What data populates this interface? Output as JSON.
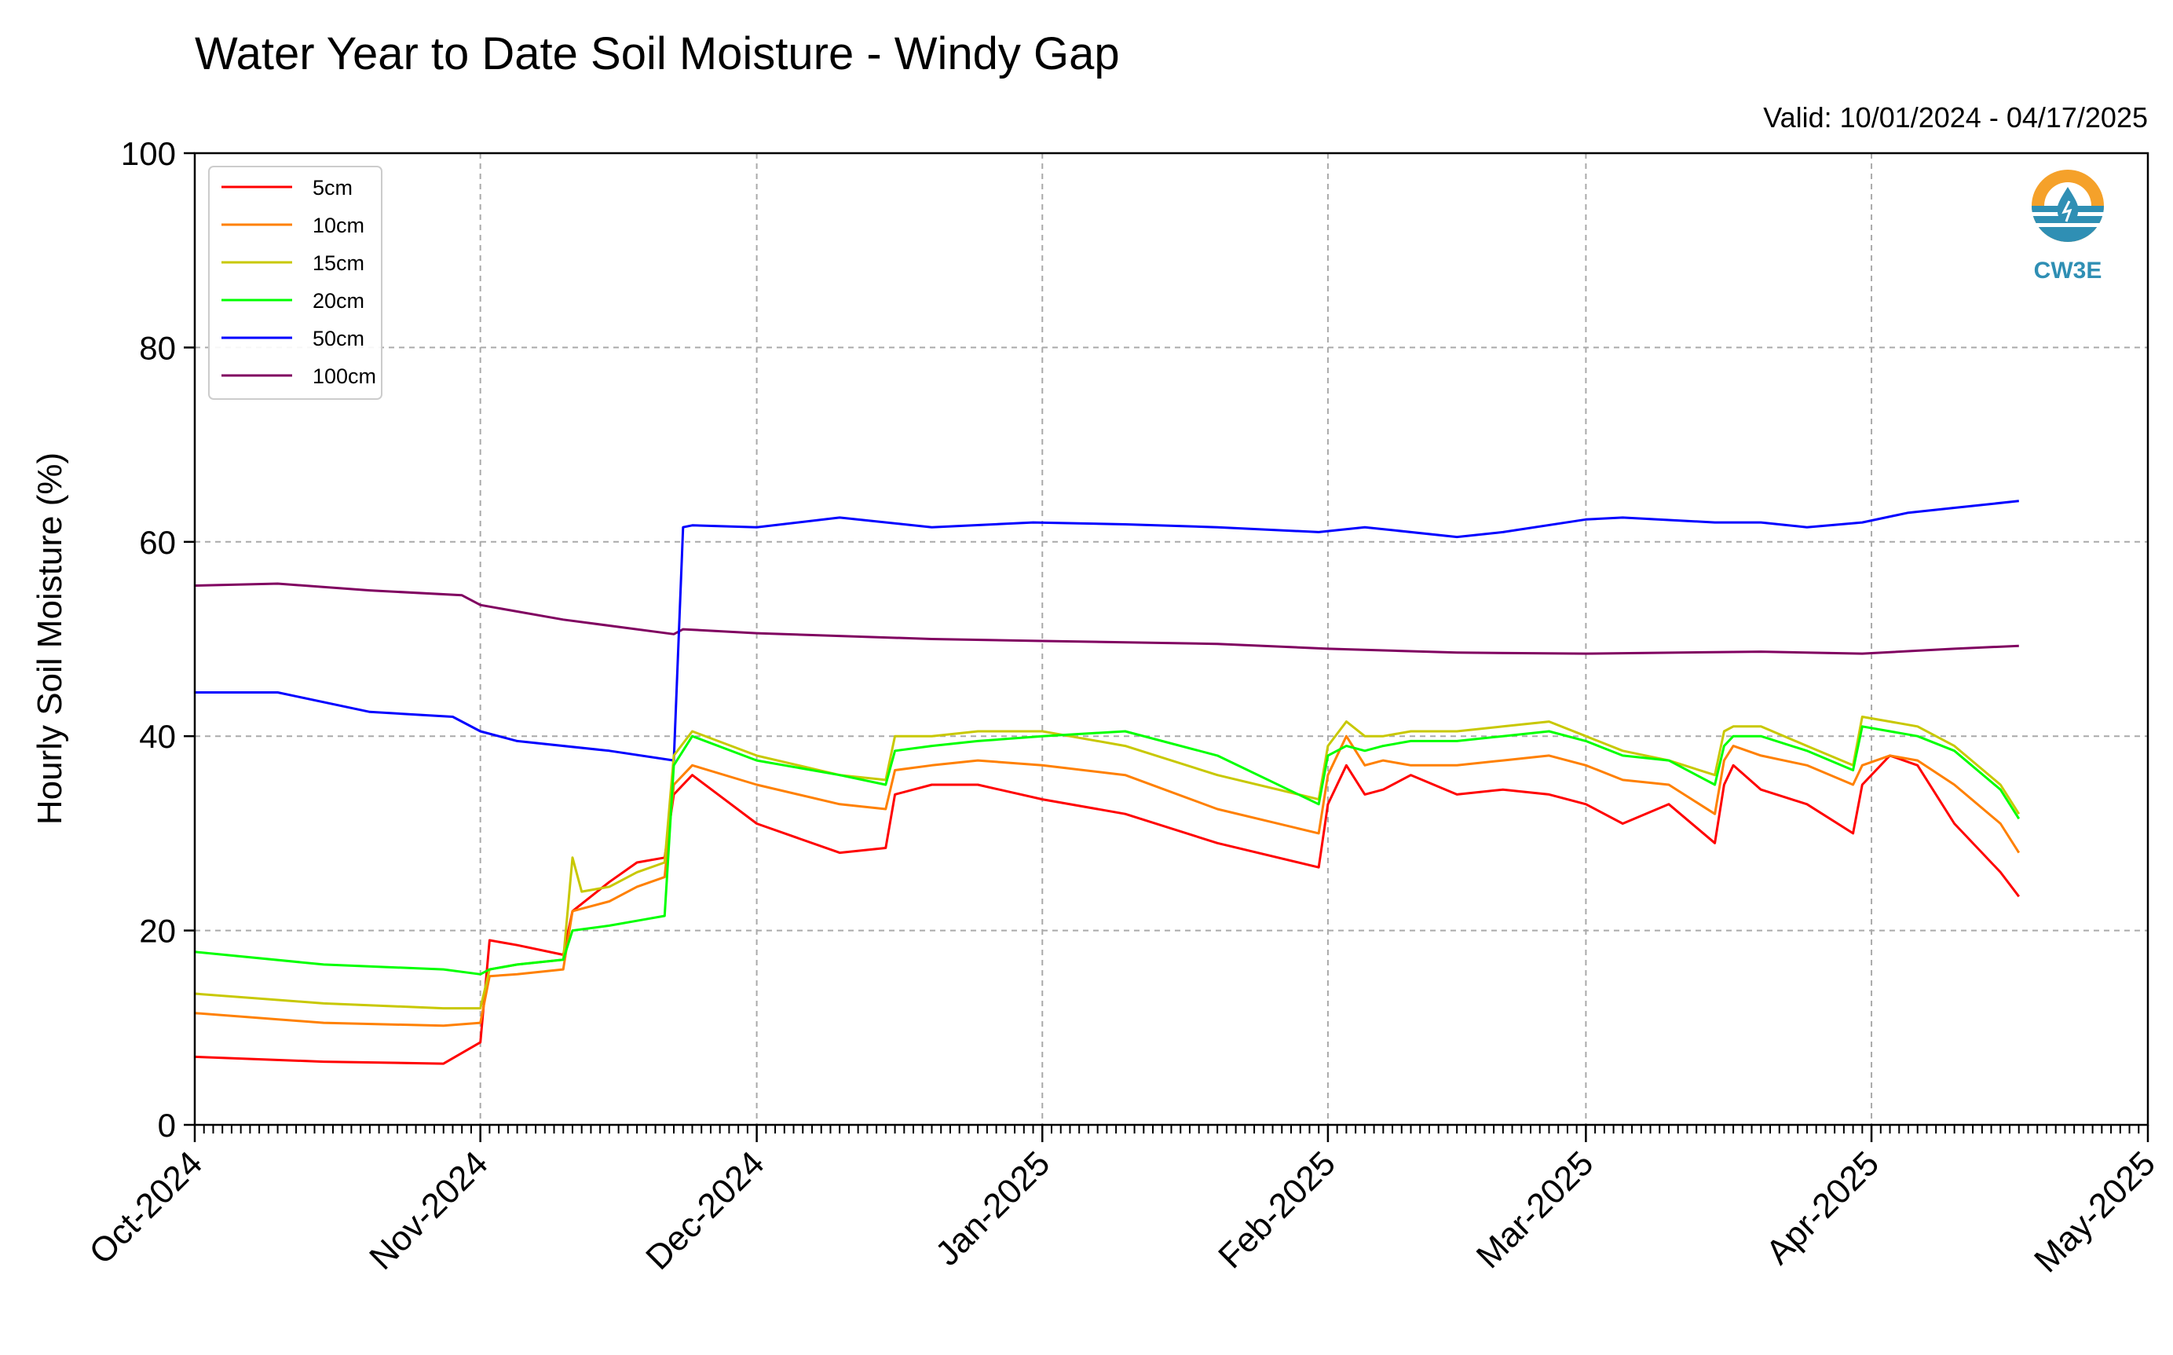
{
  "chart_data": {
    "type": "line",
    "title": "Water Year to Date Soil Moisture - Windy Gap",
    "subtitle": "Valid: 10/01/2024 - 04/17/2025",
    "xlabel": "",
    "ylabel": "Hourly Soil Moisture (%)",
    "ylim": [
      0,
      100
    ],
    "yticks": [
      "0",
      "20",
      "40",
      "60",
      "80",
      "100"
    ],
    "xticks": [
      "Oct-2024",
      "Nov-2024",
      "Dec-2024",
      "Jan-2025",
      "Feb-2025",
      "Mar-2025",
      "Apr-2025",
      "May-2025"
    ],
    "xlim": [
      "2024-10-01",
      "2025-05-01"
    ],
    "grid": true,
    "legend_position": "top-left",
    "series": [
      {
        "name": "5cm",
        "color": "#ff0000",
        "x": [
          "2024-10-01",
          "2024-10-15",
          "2024-10-28",
          "2024-11-01",
          "2024-11-02",
          "2024-11-05",
          "2024-11-10",
          "2024-11-11",
          "2024-11-15",
          "2024-11-18",
          "2024-11-21",
          "2024-11-22",
          "2024-11-24",
          "2024-12-01",
          "2024-12-10",
          "2024-12-15",
          "2024-12-16",
          "2024-12-20",
          "2024-12-25",
          "2025-01-01",
          "2025-01-10",
          "2025-01-20",
          "2025-01-31",
          "2025-02-01",
          "2025-02-03",
          "2025-02-05",
          "2025-02-07",
          "2025-02-10",
          "2025-02-15",
          "2025-02-20",
          "2025-02-25",
          "2025-03-01",
          "2025-03-05",
          "2025-03-10",
          "2025-03-15",
          "2025-03-16",
          "2025-03-17",
          "2025-03-20",
          "2025-03-25",
          "2025-03-30",
          "2025-03-31",
          "2025-04-03",
          "2025-04-06",
          "2025-04-10",
          "2025-04-15",
          "2025-04-17"
        ],
        "values": [
          7,
          6.5,
          6.3,
          8.5,
          19,
          18.5,
          17.5,
          22,
          25,
          27,
          27.5,
          34,
          36,
          31,
          28,
          28.5,
          34,
          35,
          35,
          33.5,
          32,
          29,
          26.5,
          33,
          37,
          34,
          34.5,
          36,
          34,
          34.5,
          34,
          33,
          31,
          33,
          29,
          35,
          37,
          34.5,
          33,
          30,
          35,
          38,
          37,
          31,
          26,
          23.5
        ]
      },
      {
        "name": "10cm",
        "color": "#ff8000",
        "x": [
          "2024-10-01",
          "2024-10-15",
          "2024-10-28",
          "2024-11-01",
          "2024-11-02",
          "2024-11-05",
          "2024-11-10",
          "2024-11-11",
          "2024-11-15",
          "2024-11-18",
          "2024-11-21",
          "2024-11-22",
          "2024-11-24",
          "2024-12-01",
          "2024-12-10",
          "2024-12-15",
          "2024-12-16",
          "2024-12-20",
          "2024-12-25",
          "2025-01-01",
          "2025-01-10",
          "2025-01-20",
          "2025-01-31",
          "2025-02-01",
          "2025-02-03",
          "2025-02-05",
          "2025-02-07",
          "2025-02-10",
          "2025-02-15",
          "2025-02-20",
          "2025-02-25",
          "2025-03-01",
          "2025-03-05",
          "2025-03-10",
          "2025-03-15",
          "2025-03-16",
          "2025-03-17",
          "2025-03-20",
          "2025-03-25",
          "2025-03-30",
          "2025-03-31",
          "2025-04-03",
          "2025-04-06",
          "2025-04-10",
          "2025-04-15",
          "2025-04-17"
        ],
        "values": [
          11.5,
          10.5,
          10.2,
          10.5,
          15.3,
          15.5,
          16,
          22,
          23,
          24.5,
          25.5,
          35,
          37,
          35,
          33,
          32.5,
          36.5,
          37,
          37.5,
          37,
          36,
          32.5,
          30,
          36,
          40,
          37,
          37.5,
          37,
          37,
          37.5,
          38,
          37,
          35.5,
          35,
          32,
          37.5,
          39,
          38,
          37,
          35,
          37,
          38,
          37.5,
          35,
          31,
          28
        ]
      },
      {
        "name": "15cm",
        "color": "#c8c800",
        "x": [
          "2024-10-01",
          "2024-10-15",
          "2024-10-28",
          "2024-11-01",
          "2024-11-02",
          "2024-11-05",
          "2024-11-10",
          "2024-11-11",
          "2024-11-12",
          "2024-11-15",
          "2024-11-18",
          "2024-11-21",
          "2024-11-22",
          "2024-11-24",
          "2024-12-01",
          "2024-12-10",
          "2024-12-15",
          "2024-12-16",
          "2024-12-20",
          "2024-12-25",
          "2025-01-01",
          "2025-01-10",
          "2025-01-20",
          "2025-01-31",
          "2025-02-01",
          "2025-02-03",
          "2025-02-05",
          "2025-02-07",
          "2025-02-10",
          "2025-02-15",
          "2025-02-20",
          "2025-02-25",
          "2025-03-01",
          "2025-03-05",
          "2025-03-10",
          "2025-03-15",
          "2025-03-16",
          "2025-03-17",
          "2025-03-20",
          "2025-03-25",
          "2025-03-30",
          "2025-03-31",
          "2025-04-03",
          "2025-04-06",
          "2025-04-10",
          "2025-04-15",
          "2025-04-17"
        ],
        "values": [
          13.5,
          12.5,
          12,
          12,
          16,
          16.5,
          17,
          27.5,
          24,
          24.5,
          26,
          27,
          38,
          40.5,
          38,
          36,
          35.5,
          40,
          40,
          40.5,
          40.5,
          39,
          36,
          33.5,
          39,
          41.5,
          40,
          40,
          40.5,
          40.5,
          41,
          41.5,
          40,
          38.5,
          37.5,
          36,
          40.5,
          41,
          41,
          39,
          37,
          42,
          41.5,
          41,
          39,
          35,
          32
        ]
      },
      {
        "name": "20cm",
        "color": "#00ff00",
        "x": [
          "2024-10-01",
          "2024-10-15",
          "2024-10-28",
          "2024-11-01",
          "2024-11-02",
          "2024-11-05",
          "2024-11-10",
          "2024-11-11",
          "2024-11-15",
          "2024-11-18",
          "2024-11-21",
          "2024-11-22",
          "2024-11-24",
          "2024-12-01",
          "2024-12-10",
          "2024-12-15",
          "2024-12-16",
          "2024-12-20",
          "2024-12-25",
          "2025-01-01",
          "2025-01-10",
          "2025-01-20",
          "2025-01-31",
          "2025-02-01",
          "2025-02-03",
          "2025-02-05",
          "2025-02-07",
          "2025-02-10",
          "2025-02-15",
          "2025-02-20",
          "2025-02-25",
          "2025-03-01",
          "2025-03-05",
          "2025-03-10",
          "2025-03-15",
          "2025-03-16",
          "2025-03-17",
          "2025-03-20",
          "2025-03-25",
          "2025-03-30",
          "2025-03-31",
          "2025-04-03",
          "2025-04-06",
          "2025-04-10",
          "2025-04-15",
          "2025-04-17"
        ],
        "values": [
          17.8,
          16.5,
          16,
          15.5,
          16,
          16.5,
          17,
          20,
          20.5,
          21,
          21.5,
          37,
          40,
          37.5,
          36,
          35,
          38.5,
          39,
          39.5,
          40,
          40.5,
          38,
          33,
          38,
          39,
          38.5,
          39,
          39.5,
          39.5,
          40,
          40.5,
          39.5,
          38,
          37.5,
          35,
          39,
          40,
          40,
          38.5,
          36.5,
          41,
          40.5,
          40,
          38.5,
          34.5,
          31.5
        ]
      },
      {
        "name": "50cm",
        "color": "#0000ff",
        "x": [
          "2024-10-01",
          "2024-10-10",
          "2024-10-20",
          "2024-10-29",
          "2024-11-01",
          "2024-11-05",
          "2024-11-15",
          "2024-11-22",
          "2024-11-23",
          "2024-11-24",
          "2024-12-01",
          "2024-12-10",
          "2024-12-20",
          "2024-12-31",
          "2025-01-10",
          "2025-01-20",
          "2025-01-31",
          "2025-02-05",
          "2025-02-15",
          "2025-02-20",
          "2025-03-01",
          "2025-03-05",
          "2025-03-15",
          "2025-03-20",
          "2025-03-25",
          "2025-03-31",
          "2025-04-05",
          "2025-04-10",
          "2025-04-17"
        ],
        "values": [
          44.5,
          44.5,
          42.5,
          42,
          40.5,
          39.5,
          38.5,
          37.5,
          61.5,
          61.7,
          61.5,
          62.5,
          61.5,
          62,
          61.8,
          61.5,
          61,
          61.5,
          60.5,
          61,
          62.3,
          62.5,
          62,
          62,
          61.5,
          62,
          63,
          63.5,
          64.2
        ]
      },
      {
        "name": "100cm",
        "color": "#800060",
        "x": [
          "2024-10-01",
          "2024-10-10",
          "2024-10-20",
          "2024-10-30",
          "2024-11-01",
          "2024-11-10",
          "2024-11-22",
          "2024-11-23",
          "2024-12-01",
          "2024-12-20",
          "2025-01-01",
          "2025-01-20",
          "2025-02-01",
          "2025-02-15",
          "2025-03-01",
          "2025-03-20",
          "2025-03-31",
          "2025-04-10",
          "2025-04-17"
        ],
        "values": [
          55.5,
          55.7,
          55,
          54.5,
          53.5,
          52,
          50.5,
          51,
          50.6,
          50,
          49.8,
          49.5,
          49,
          48.6,
          48.5,
          48.7,
          48.5,
          49,
          49.3
        ]
      }
    ]
  },
  "logo": {
    "text": "CW3E",
    "icon": "water-drop-logo-icon"
  }
}
